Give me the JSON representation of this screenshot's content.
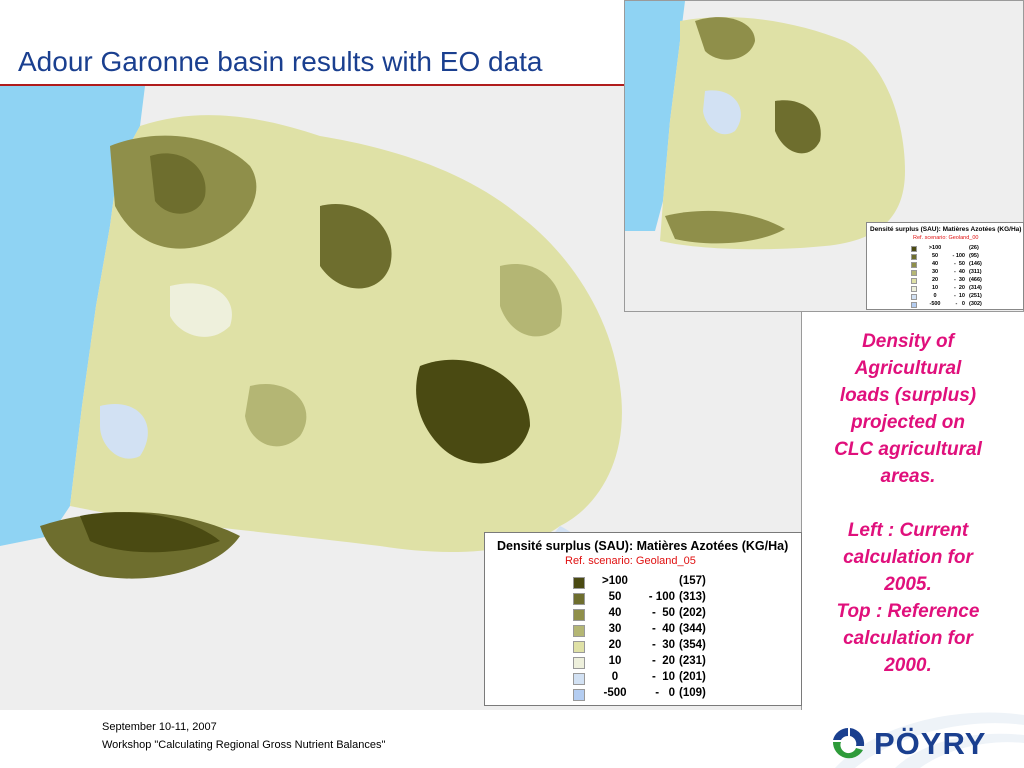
{
  "title": "Adour Garonne basin results with EO data",
  "main_legend": {
    "title": "Densité surplus (SAU): Matières Azotées (KG/Ha)",
    "subtitle": "Ref. scenario: Geoland_05",
    "rows": [
      {
        "low": ">100",
        "high": "",
        "count": "(157)",
        "color": "#4a4a12"
      },
      {
        "low": "50",
        "high": "- 100",
        "count": "(313)",
        "color": "#6e6e2e"
      },
      {
        "low": "40",
        "high": "-  50",
        "count": "(202)",
        "color": "#8f8f4a"
      },
      {
        "low": "30",
        "high": "-  40",
        "count": "(344)",
        "color": "#b4b674"
      },
      {
        "low": "20",
        "high": "-  30",
        "count": "(354)",
        "color": "#dfe1a6"
      },
      {
        "low": "10",
        "high": "-  20",
        "count": "(231)",
        "color": "#eef0dc"
      },
      {
        "low": "0",
        "high": "-  10",
        "count": "(201)",
        "color": "#d2e1f3"
      },
      {
        "low": "-500",
        "high": "-   0",
        "count": "(109)",
        "color": "#b4cdf1"
      }
    ]
  },
  "top_legend": {
    "title": "Densité surplus (SAU): Matières Azotées (KG/Ha)",
    "subtitle": "Ref. scenario: Geoland_00",
    "rows": [
      {
        "low": ">100",
        "high": "",
        "count": "(26)",
        "color": "#4a4a12"
      },
      {
        "low": "50",
        "high": "- 100",
        "count": "(95)",
        "color": "#6e6e2e"
      },
      {
        "low": "40",
        "high": "-  50",
        "count": "(146)",
        "color": "#8f8f4a"
      },
      {
        "low": "30",
        "high": "-  40",
        "count": "(311)",
        "color": "#b4b674"
      },
      {
        "low": "20",
        "high": "-  30",
        "count": "(466)",
        "color": "#dfe1a6"
      },
      {
        "low": "10",
        "high": "-  20",
        "count": "(314)",
        "color": "#eef0dc"
      },
      {
        "low": "0",
        "high": "-  10",
        "count": "(251)",
        "color": "#d2e1f3"
      },
      {
        "low": "-500",
        "high": "-   0",
        "count": "(302)",
        "color": "#b4cdf1"
      }
    ]
  },
  "description": {
    "lines_1": [
      "Density of",
      "Agricultural",
      "loads (surplus)",
      "projected on",
      "CLC agricultural",
      "areas."
    ],
    "lines_2": [
      "Left : Current",
      "calculation for",
      "2005.",
      "Top : Reference",
      "calculation for",
      "2000."
    ]
  },
  "footer": {
    "date": "September 10-11, 2007",
    "workshop": "Workshop \"Calculating Regional Gross Nutrient Balances\""
  },
  "logo_text": "PÖYRY",
  "colors": {
    "title": "#1a3f8f",
    "description": "#e0107c",
    "sea": "#8fd3f3",
    "land_bg": "#eeeeee"
  }
}
